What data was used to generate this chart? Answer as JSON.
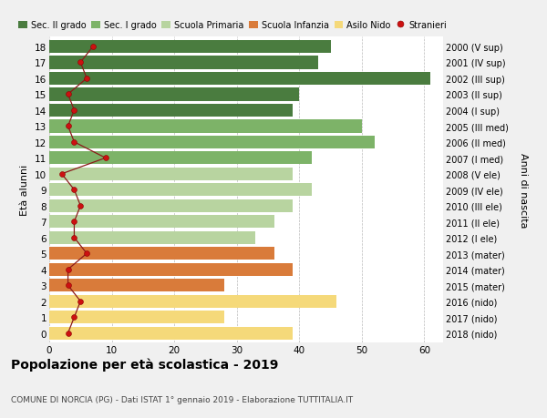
{
  "ages": [
    18,
    17,
    16,
    15,
    14,
    13,
    12,
    11,
    10,
    9,
    8,
    7,
    6,
    5,
    4,
    3,
    2,
    1,
    0
  ],
  "bar_values": [
    45,
    43,
    61,
    40,
    39,
    50,
    52,
    42,
    39,
    42,
    39,
    36,
    33,
    36,
    39,
    28,
    46,
    28,
    39
  ],
  "right_labels": [
    "2000 (V sup)",
    "2001 (IV sup)",
    "2002 (III sup)",
    "2003 (II sup)",
    "2004 (I sup)",
    "2005 (III med)",
    "2006 (II med)",
    "2007 (I med)",
    "2008 (V ele)",
    "2009 (IV ele)",
    "2010 (III ele)",
    "2011 (II ele)",
    "2012 (I ele)",
    "2013 (mater)",
    "2014 (mater)",
    "2015 (mater)",
    "2016 (nido)",
    "2017 (nido)",
    "2018 (nido)"
  ],
  "bar_colors": [
    "#4a7c3f",
    "#4a7c3f",
    "#4a7c3f",
    "#4a7c3f",
    "#4a7c3f",
    "#7db368",
    "#7db368",
    "#7db368",
    "#b8d4a0",
    "#b8d4a0",
    "#b8d4a0",
    "#b8d4a0",
    "#b8d4a0",
    "#d97b3a",
    "#d97b3a",
    "#d97b3a",
    "#f5d97a",
    "#f5d97a",
    "#f5d97a"
  ],
  "stranieri_values": [
    7,
    5,
    6,
    3,
    4,
    3,
    4,
    9,
    2,
    4,
    5,
    4,
    4,
    6,
    3,
    3,
    5,
    4,
    3
  ],
  "legend_labels": [
    "Sec. II grado",
    "Sec. I grado",
    "Scuola Primaria",
    "Scuola Infanzia",
    "Asilo Nido",
    "Stranieri"
  ],
  "legend_colors": [
    "#4a7c3f",
    "#7db368",
    "#b8d4a0",
    "#d97b3a",
    "#f5d97a",
    "#b22222"
  ],
  "title": "Popolazione per età scolastica - 2019",
  "subtitle": "COMUNE DI NORCIA (PG) - Dati ISTAT 1° gennaio 2019 - Elaborazione TUTTITALIA.IT",
  "ylabel": "Età alunni",
  "right_ylabel": "Anni di nascita",
  "background_color": "#f0f0f0",
  "plot_bg_color": "#ffffff"
}
